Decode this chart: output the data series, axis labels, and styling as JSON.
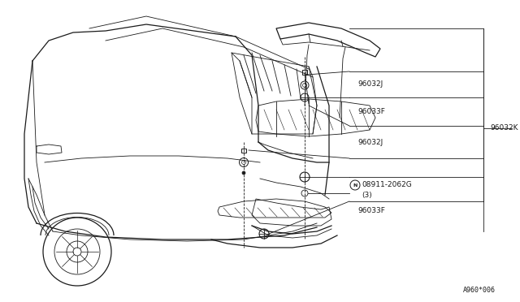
{
  "bg_color": "#ffffff",
  "line_color": "#1a1a1a",
  "fig_width": 6.4,
  "fig_height": 3.72,
  "dpi": 100,
  "footnote": "A960*006",
  "label_96032J_1": "96032J",
  "label_96033F_1": "96033F",
  "label_96032K": "96032K",
  "label_96032J_2": "96032J",
  "label_N_part": "08911-2062G",
  "label_N_qty": "(3)",
  "label_96033F_2": "96033F"
}
